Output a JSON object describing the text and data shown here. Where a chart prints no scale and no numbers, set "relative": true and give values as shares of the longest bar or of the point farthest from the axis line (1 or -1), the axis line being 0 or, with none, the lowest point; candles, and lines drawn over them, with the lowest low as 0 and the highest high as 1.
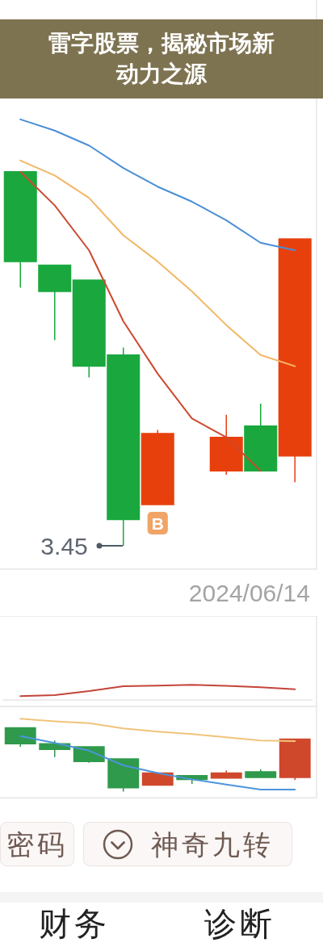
{
  "chart_data": [
    {
      "type": "candlestick",
      "title": "雷字股票，揭秘市场新动力之源",
      "categories": [
        null,
        null,
        null,
        null,
        null,
        null,
        null,
        null,
        null
      ],
      "ohlc": [
        [
          1,
          1,
          0.69,
          0.76
        ],
        [
          0.75,
          0.75,
          0.55,
          0.68
        ],
        [
          0.71,
          0.71,
          0.45,
          0.48
        ],
        [
          0.51,
          0.53,
          0,
          0.07
        ],
        [
          0.11,
          0.31,
          0.11,
          0.3
        ],
        null,
        [
          0.2,
          0.35,
          0.19,
          0.29
        ],
        [
          0.32,
          0.38,
          0.2,
          0.2
        ],
        [
          0.24,
          0.82,
          0.17,
          0.82
        ]
      ],
      "colors": [
        "#1aa83e",
        "#1aa83e",
        "#1aa83e",
        "#1aa83e",
        "#e8400c",
        null,
        "#e8400c",
        "#1aa83e",
        "#e8400c"
      ],
      "series": [
        {
          "type": "line",
          "color": "#4a8fd6",
          "values": [
            1.14,
            1.11,
            1.07,
            1.01,
            0.96,
            0.92,
            0.87,
            0.81,
            0.79
          ]
        },
        {
          "type": "line",
          "color": "#f2b767",
          "values": [
            1.03,
            0.99,
            0.93,
            0.83,
            0.76,
            0.68,
            0.59,
            0.51,
            0.48
          ]
        },
        {
          "type": "line",
          "color": "#cc4a2e",
          "values": [
            1,
            0.91,
            0.79,
            0.6,
            0.46,
            0.34,
            0.29,
            0.2,
            null
          ]
        }
      ],
      "relative": true,
      "annotations": [
        "3.45",
        "B",
        "2024/06/14"
      ]
    },
    {
      "type": "line",
      "categories": [
        null,
        null,
        null,
        null,
        null,
        null,
        null,
        null,
        null
      ],
      "series": [
        {
          "color": "#c4453a",
          "values": [
            0.25,
            0.32,
            0.58,
            0.91,
            0.95,
            1,
            0.93,
            0.84,
            0.71
          ]
        }
      ],
      "relative": true
    },
    {
      "type": "candlestick",
      "categories": [
        null,
        null,
        null,
        null,
        null,
        null,
        null,
        null,
        null
      ],
      "ohlc": [
        [
          1,
          1,
          0.7,
          0.75
        ],
        [
          0.75,
          0.8,
          0.54,
          0.66
        ],
        [
          0.7,
          0.7,
          0.45,
          0.47
        ],
        [
          0.51,
          0.51,
          0,
          0.06
        ],
        [
          0.1,
          0.29,
          0.1,
          0.29
        ],
        [
          0.25,
          0.25,
          0.12,
          0.19
        ],
        [
          0.21,
          0.33,
          0.21,
          0.29
        ],
        [
          0.31,
          0.35,
          0.21,
          0.22
        ],
        [
          0.22,
          0.82,
          0.18,
          0.82
        ]
      ],
      "colors": [
        "#2f9a4c",
        "#2f9a4c",
        "#2f9a4c",
        "#2f9a4c",
        "#d0482c",
        "#2f9a4c",
        "#d0482c",
        "#2f9a4c",
        "#d0482c"
      ],
      "series": [
        {
          "type": "line",
          "color": "#f0c47a",
          "values": [
            1.14,
            1.1,
            1.07,
            0.99,
            0.94,
            0.9,
            0.85,
            0.8,
            0.79
          ]
        },
        {
          "type": "line",
          "color": "#4d94dc",
          "values": [
            0.87,
            0.76,
            0.64,
            0.41,
            0.29,
            0.19,
            0.11,
            0.03,
            0.03
          ]
        }
      ],
      "relative": true,
      "annotations": [
        "密码",
        "神奇九转",
        "财务",
        "诊断"
      ]
    }
  ]
}
